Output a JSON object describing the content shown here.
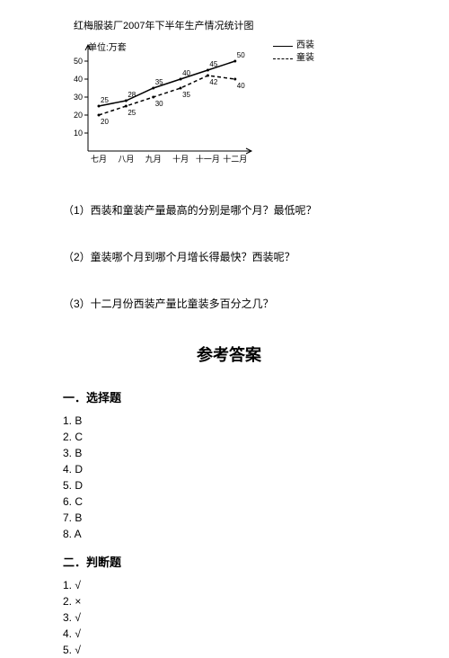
{
  "chart": {
    "title": "红梅服装厂2007年下半年生产情况统计图",
    "unit_label": "单位:万套",
    "type": "line",
    "background_color": "#ffffff",
    "axis_color": "#000000",
    "axis_width": 1,
    "arrow_size": 5,
    "x_categories": [
      "七月",
      "八月",
      "九月",
      "十月",
      "十一月",
      "十二月"
    ],
    "y_ticks": [
      10,
      20,
      30,
      40,
      50
    ],
    "ylim": [
      0,
      55
    ],
    "y_tick_len": 4,
    "label_fontsize": 9,
    "series": [
      {
        "name": "西装",
        "label": "西装",
        "style": "solid",
        "color": "#000000",
        "line_width": 1.5,
        "values": [
          25,
          28,
          35,
          40,
          45,
          50
        ],
        "point_labels": [
          "25",
          "28",
          "35",
          "40",
          "45",
          "50"
        ]
      },
      {
        "name": "童装",
        "label": "童装",
        "style": "dash",
        "color": "#000000",
        "line_width": 1.5,
        "dasharray": "4,3",
        "values": [
          20,
          25,
          30,
          35,
          42,
          40
        ],
        "point_labels": [
          "20",
          "25",
          "30",
          "35",
          "42",
          "40"
        ]
      }
    ],
    "legend": {
      "position": "top-right"
    }
  },
  "questions": {
    "q1": "（1）西装和童装产量最高的分别是哪个月？最低呢？",
    "q2": "（2）童装哪个月到哪个月增长得最快？西装呢？",
    "q3": "（3）十二月份西装产量比童装多百分之几？"
  },
  "answers": {
    "title": "参考答案",
    "sections": [
      {
        "heading": "一．选择题",
        "items": [
          "1. B",
          "2. C",
          "3. B",
          "4. D",
          "5. D",
          "6. C",
          "7. B",
          "8. A"
        ]
      },
      {
        "heading": "二．判断题",
        "items": [
          "1. √",
          "2. ×",
          "3. √",
          "4. √",
          "5. √"
        ]
      }
    ]
  }
}
